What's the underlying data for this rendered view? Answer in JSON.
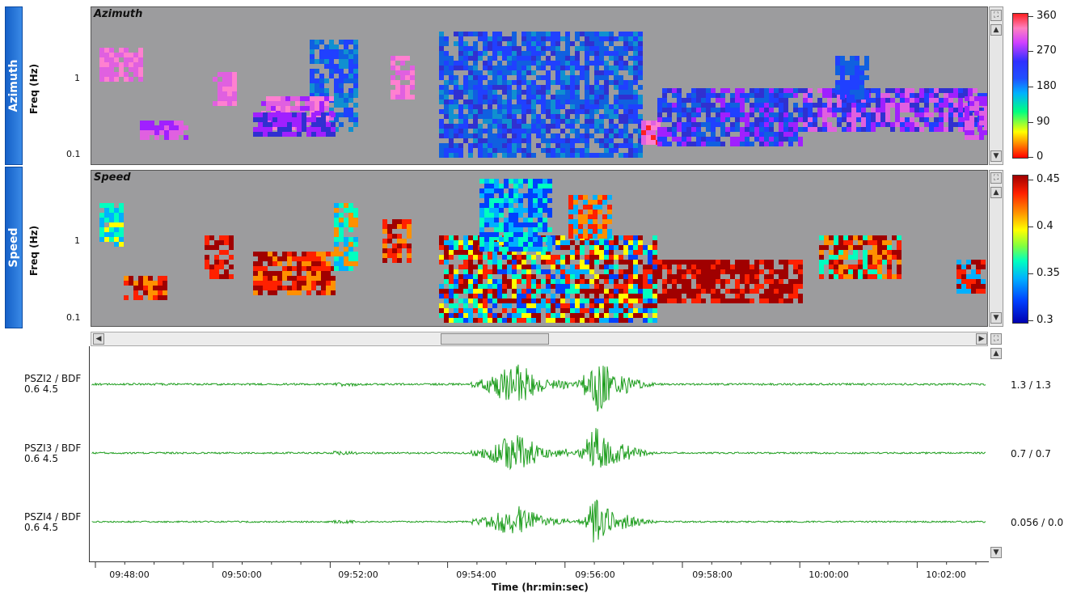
{
  "panels": {
    "azimuth": {
      "tab_label": "Azimuth",
      "title": "Azimuth",
      "ylabel": "Freq (Hz)",
      "yticks": [
        "1",
        "0.1"
      ]
    },
    "speed": {
      "tab_label": "Speed",
      "title": "Speed",
      "ylabel": "Freq (Hz)",
      "yticks": [
        "1",
        "0.1"
      ]
    }
  },
  "colorbars": {
    "azimuth": {
      "ticks": [
        "360",
        "270",
        "180",
        "90",
        "0"
      ]
    },
    "speed": {
      "ticks": [
        "0.45",
        "0.4",
        "0.35",
        "0.3"
      ]
    }
  },
  "traces": [
    {
      "station": "PSZI2 / BDF",
      "filter": "0.6 4.5",
      "scale": "1.3 / 1.3"
    },
    {
      "station": "PSZI3 / BDF",
      "filter": "0.6 4.5",
      "scale": "0.7 / 0.7"
    },
    {
      "station": "PSZI4 / BDF",
      "filter": "0.6 4.5",
      "scale": "0.056 / 0.0"
    }
  ],
  "time_axis": {
    "ticks": [
      "09:48:00",
      "09:50:00",
      "09:52:00",
      "09:54:00",
      "09:56:00",
      "09:58:00",
      "10:00:00",
      "10:02:00"
    ],
    "label": "Time (hr:min:sec)"
  },
  "colors": {
    "panel_bg": "#9c9c9e",
    "trace": "#1f9e1f",
    "tab": "#2a78dc"
  },
  "icons": [
    "expand-icon",
    "scroll-up-arrow-icon",
    "scroll-down-arrow-icon",
    "scroll-left-arrow-icon",
    "scroll-right-arrow-icon"
  ]
}
